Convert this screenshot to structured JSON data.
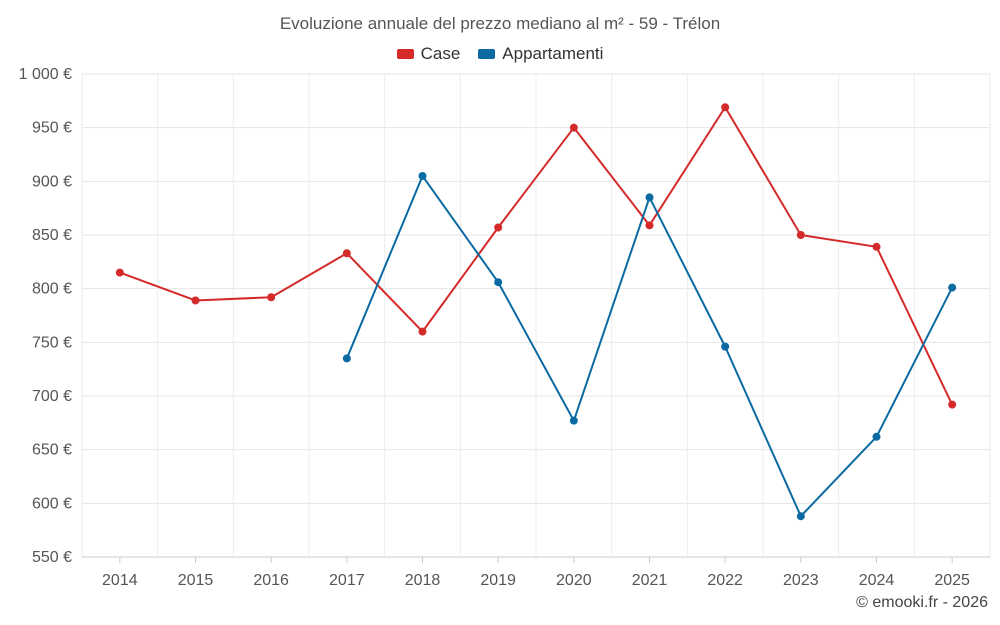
{
  "chart_data": {
    "type": "line",
    "title": "Evoluzione annuale del prezzo mediano al m² - 59 - Trélon",
    "xlabel": "",
    "ylabel": "",
    "categories": [
      "2014",
      "2015",
      "2016",
      "2017",
      "2018",
      "2019",
      "2020",
      "2021",
      "2022",
      "2023",
      "2024",
      "2025"
    ],
    "y_ticks": [
      550,
      600,
      650,
      700,
      750,
      800,
      850,
      900,
      950,
      1000
    ],
    "y_tick_labels": [
      "550 €",
      "600 €",
      "650 €",
      "700 €",
      "750 €",
      "800 €",
      "850 €",
      "900 €",
      "950 €",
      "1 000 €"
    ],
    "ylim": [
      550,
      1000
    ],
    "grid": true,
    "legend_position": "top-center",
    "series": [
      {
        "name": "Case",
        "color": "#d42a2a",
        "values": [
          815,
          789,
          792,
          833,
          760,
          857,
          950,
          859,
          969,
          850,
          839,
          692
        ]
      },
      {
        "name": "Appartamenti",
        "color": "#0a6aa1",
        "values": [
          null,
          null,
          null,
          735,
          905,
          806,
          677,
          885,
          746,
          588,
          662,
          801
        ]
      }
    ]
  },
  "footer": {
    "credit": "© emooki.fr - 2026"
  }
}
